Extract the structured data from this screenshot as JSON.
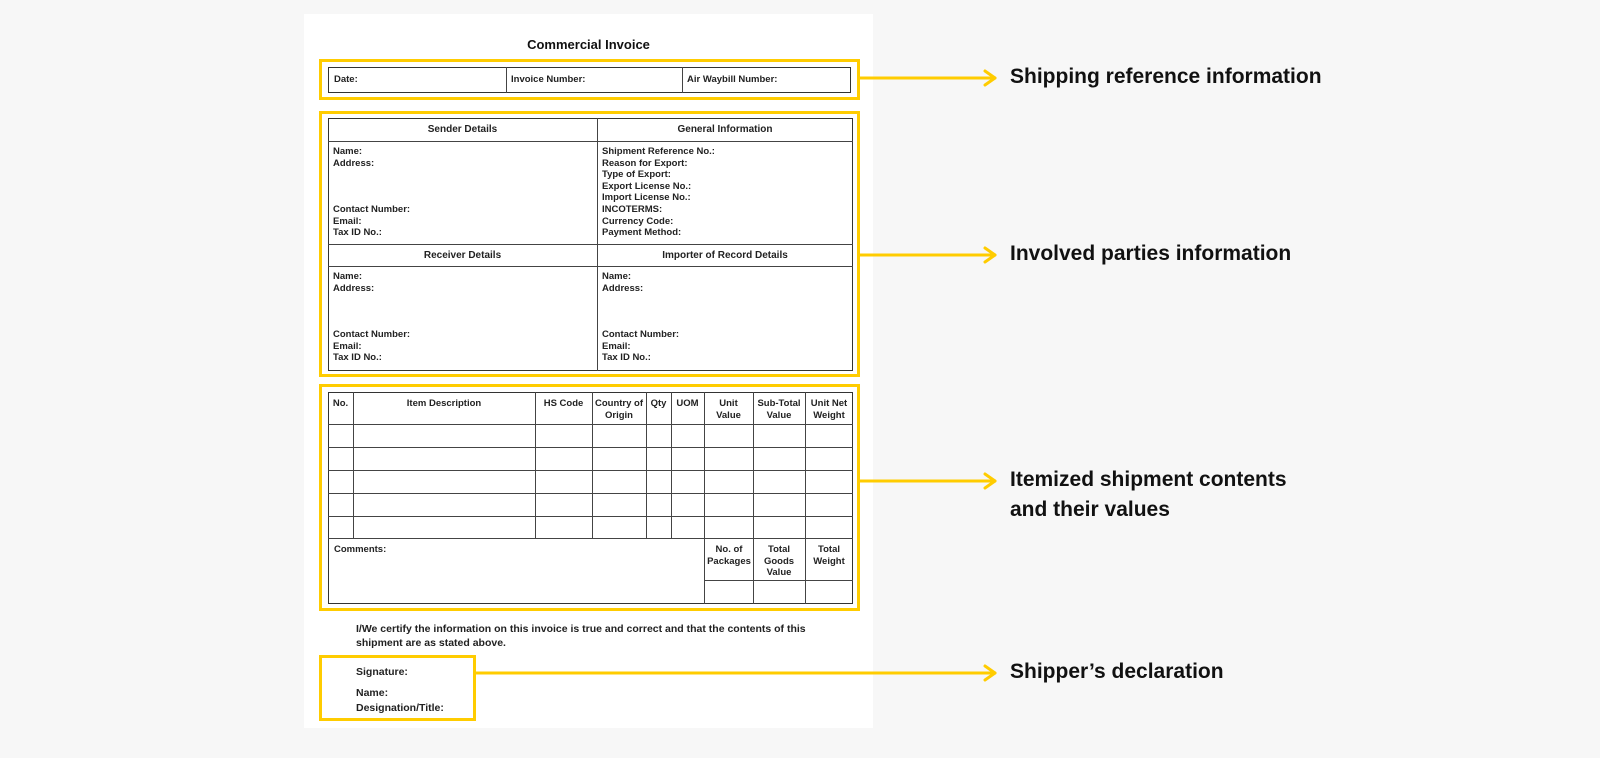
{
  "document": {
    "title": "Commercial Invoice",
    "reference_row": [
      "Date:",
      "Invoice Number:",
      "Air Waybill Number:"
    ],
    "sender": {
      "heading": "Sender Details",
      "fields_top": [
        "Name:",
        "Address:"
      ],
      "fields_bottom": [
        "Contact Number:",
        "Email:",
        "Tax ID No.:"
      ]
    },
    "general": {
      "heading": "General Information",
      "fields": [
        "Shipment Reference No.:",
        "Reason for Export:",
        "Type of Export:",
        "Export License No.:",
        "Import License No.:",
        "INCOTERMS:",
        "Currency Code:",
        "Payment Method:"
      ]
    },
    "receiver": {
      "heading": "Receiver Details",
      "fields_top": [
        "Name:",
        "Address:"
      ],
      "fields_bottom": [
        "Contact Number:",
        "Email:",
        "Tax ID No.:"
      ]
    },
    "importer": {
      "heading": "Importer of Record Details",
      "fields_top": [
        "Name:",
        "Address:"
      ],
      "fields_bottom": [
        "Contact Number:",
        "Email:",
        "Tax ID No.:"
      ]
    },
    "items_table": {
      "columns": [
        "No.",
        "Item Description",
        "HS Code",
        "Country of Origin",
        "Qty",
        "UOM",
        "Unit Value",
        "Sub-Total Value",
        "Unit Net Weight"
      ],
      "comments_label": "Comments:",
      "totals": [
        "No. of Packages",
        "Total Goods Value",
        "Total Weight"
      ]
    },
    "certification": "I/We certify the information on this invoice is true and correct and that the contents of this shipment are as stated above.",
    "declaration": [
      "Signature:",
      "Name:",
      "Designation/Title:"
    ]
  },
  "annotations": [
    "Shipping reference information",
    "Involved parties information",
    "Itemized shipment contents and their values",
    "Shipper’s declaration"
  ],
  "colors": {
    "highlight": "#ffcc00",
    "background": "#f7f7f7"
  }
}
